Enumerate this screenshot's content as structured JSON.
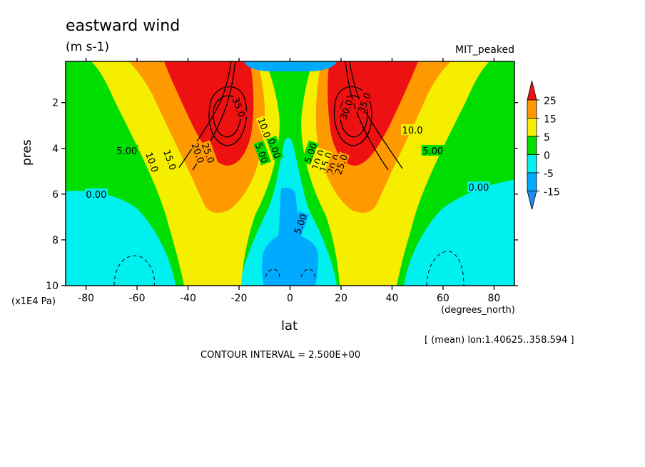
{
  "chart_data": {
    "type": "heatmap",
    "title": "eastward wind",
    "units": "(m s-1)",
    "dataset": "MIT_peaked",
    "xlabel": "lat",
    "xunit": "(degrees_north)",
    "ylabel": "pres",
    "yunit": "(x1E4 Pa)",
    "xlim": [
      -88,
      88
    ],
    "ylim": [
      10,
      0.2
    ],
    "x_ticks": [
      -80,
      -60,
      -40,
      -20,
      0,
      20,
      40,
      60,
      80
    ],
    "y_ticks": [
      2,
      4,
      6,
      8,
      10
    ],
    "contour_labels": [
      {
        "text": "35.0",
        "x": -20,
        "y": 2.2,
        "color": "#ee1111"
      },
      {
        "text": "30.0",
        "x": 22,
        "y": 2.3,
        "color": "#ee1111"
      },
      {
        "text": "35.0",
        "x": 29,
        "y": 2.0,
        "color": "#ee1111"
      },
      {
        "text": "10.0",
        "x": -10,
        "y": 3.1,
        "color": "#f6ee00"
      },
      {
        "text": "10.0",
        "x": 48,
        "y": 3.2,
        "color": "#f6ee00"
      },
      {
        "text": "5.00",
        "x": -64,
        "y": 4.1,
        "color": "#00dd00"
      },
      {
        "text": "10.0",
        "x": -54,
        "y": 4.6,
        "color": "#f6ee00"
      },
      {
        "text": "15.0",
        "x": -47,
        "y": 4.5,
        "color": "#f6ee00"
      },
      {
        "text": "20.0",
        "x": -36,
        "y": 4.2,
        "color": "#ff9900"
      },
      {
        "text": "25.0",
        "x": -32,
        "y": 4.2,
        "color": "#ff9900"
      },
      {
        "text": "5.00",
        "x": -11,
        "y": 4.2,
        "color": "#00dd00"
      },
      {
        "text": "0.00",
        "x": -6,
        "y": 4.0,
        "color": "#00dd00"
      },
      {
        "text": "5.00",
        "x": 8,
        "y": 4.2,
        "color": "#00dd00"
      },
      {
        "text": "10.0",
        "x": 11,
        "y": 4.5,
        "color": "#f6ee00"
      },
      {
        "text": "15.0",
        "x": 14,
        "y": 4.6,
        "color": "#f6ee00"
      },
      {
        "text": "20.0",
        "x": 17,
        "y": 4.7,
        "color": "#ff9900"
      },
      {
        "text": "25.0",
        "x": 20,
        "y": 4.7,
        "color": "#ff9900"
      },
      {
        "text": "5.00",
        "x": 56,
        "y": 4.1,
        "color": "#00dd00"
      },
      {
        "text": "0.00",
        "x": -76,
        "y": 6.0,
        "color": "#00f0f0"
      },
      {
        "text": "0.00",
        "x": 74,
        "y": 5.7,
        "color": "#00f0f0"
      },
      {
        "text": "5.00",
        "x": 4,
        "y": 7.3,
        "color": "#00aaff"
      }
    ],
    "colorbar": {
      "labels": [
        "25",
        "15",
        "5",
        "0",
        "-5",
        "-15"
      ],
      "colors": [
        "#ee1111",
        "#ff9900",
        "#f6ee00",
        "#00dd00",
        "#00f0f0",
        "#00aaff",
        "#1e8cf0"
      ]
    }
  },
  "contour_interval": "CONTOUR INTERVAL = 2.500E+00",
  "mean_note": "[ (mean) lon:1.40625..358.594 ]"
}
